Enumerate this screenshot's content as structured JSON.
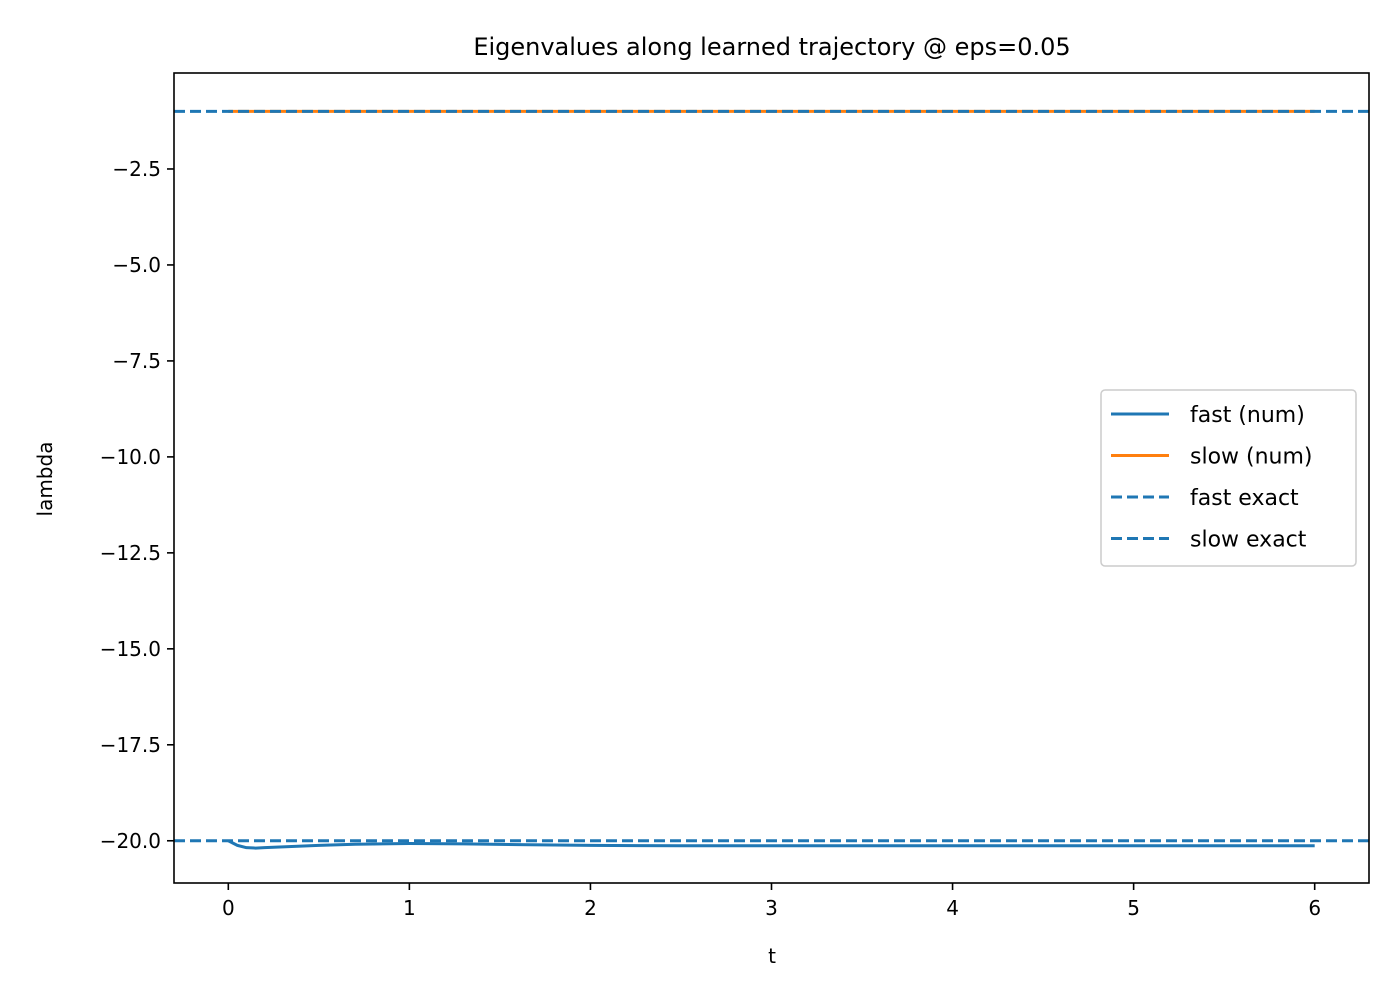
{
  "chart_data": {
    "type": "line",
    "title": "Eigenvalues along learned trajectory @ eps=0.05",
    "xlabel": "t",
    "ylabel": "lambda",
    "xlim": [
      -0.3,
      6.3
    ],
    "ylim": [
      -21.1,
      0
    ],
    "x_ticks": [
      0,
      1,
      2,
      3,
      4,
      5,
      6
    ],
    "y_ticks": [
      -20.0,
      -17.5,
      -15.0,
      -12.5,
      -10.0,
      -7.5,
      -5.0,
      -2.5
    ],
    "x_tick_labels": [
      "0",
      "1",
      "2",
      "3",
      "4",
      "5",
      "6"
    ],
    "y_tick_labels": [
      "−20.0",
      "−17.5",
      "−15.0",
      "−12.5",
      "−10.0",
      "−7.5",
      "−5.0",
      "−2.5"
    ],
    "legend_position": "center-right",
    "grid": false,
    "series": [
      {
        "name": "fast (num)",
        "style": "solid",
        "color": "#1f77b4",
        "x": [
          0,
          0.05,
          0.1,
          0.15,
          0.2,
          0.3,
          0.5,
          0.7,
          1.0,
          1.3,
          1.6,
          2.0,
          2.5,
          3.0,
          4.0,
          5.0,
          6.0
        ],
        "y": [
          -20.0,
          -20.12,
          -20.18,
          -20.19,
          -20.18,
          -20.16,
          -20.12,
          -20.09,
          -20.07,
          -20.08,
          -20.1,
          -20.12,
          -20.13,
          -20.13,
          -20.13,
          -20.13,
          -20.13
        ]
      },
      {
        "name": "slow (num)",
        "style": "solid",
        "color": "#ff7f0e",
        "x": [
          0,
          1,
          2,
          3,
          4,
          5,
          6
        ],
        "y": [
          -1.0,
          -1.0,
          -1.0,
          -1.0,
          -1.0,
          -1.0,
          -1.0
        ]
      },
      {
        "name": "fast exact",
        "style": "dashed",
        "color": "#1f77b4",
        "y": -20.0
      },
      {
        "name": "slow exact",
        "style": "dashed",
        "color": "#1f77b4",
        "y": -1.0
      }
    ]
  }
}
